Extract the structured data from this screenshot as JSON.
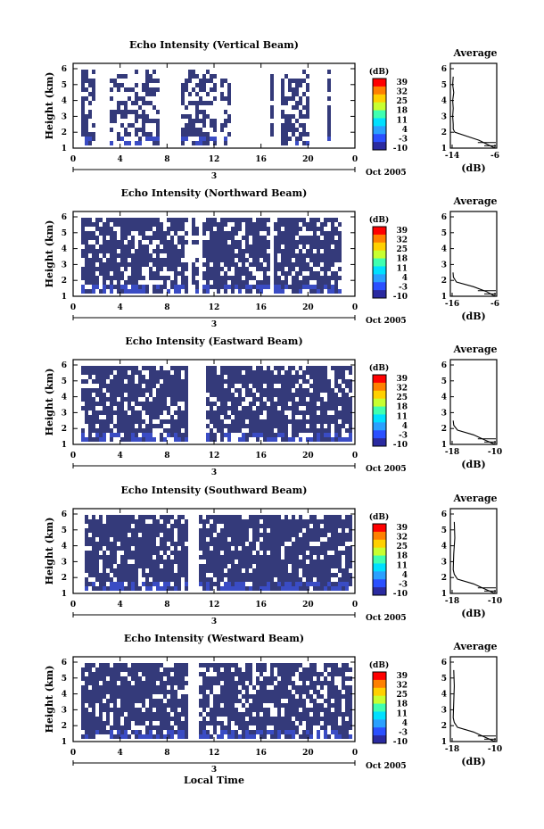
{
  "figure": {
    "x_axis_title": "Local Time",
    "date_label": "Oct 2005",
    "day_label": "3"
  },
  "colorbar": {
    "unit": "(dB)",
    "ticks": [
      "39",
      "32",
      "25",
      "18",
      "11",
      "4",
      "-3",
      "-10"
    ],
    "colors": [
      "#ff0000",
      "#ff8000",
      "#ffd000",
      "#c8ff30",
      "#40ffb0",
      "#00e0ff",
      "#2aa0ff",
      "#2a50ff",
      "#2a2aa0"
    ]
  },
  "average_panel": {
    "title": "Average",
    "xlabel": "(dB)"
  },
  "chart_data": [
    {
      "type": "heatmap",
      "title": "Echo Intensity (Vertical Beam)",
      "ylabel": "Height (km)",
      "xlabel": "Local Time",
      "x_ticks": [
        "0",
        "4",
        "8",
        "12",
        "16",
        "20",
        "0"
      ],
      "y_ticks": [
        "1",
        "2",
        "3",
        "4",
        "5",
        "6"
      ],
      "ylim": [
        1,
        6
      ],
      "color_range_db": [
        -10,
        39
      ],
      "avg_xticks": [
        "-14",
        "-6"
      ],
      "avg_xlim": [
        -14,
        -6
      ],
      "avg_profile": {
        "height_km": [
          1.0,
          1.5,
          2.0,
          2.2,
          2.5,
          3.0,
          3.5,
          4.0,
          4.5,
          5.0,
          5.5
        ],
        "db": [
          -6,
          -9,
          -13.5,
          -13.8,
          -13.8,
          -13.9,
          -13.8,
          -13.9,
          -13.7,
          -13.9,
          -13.8
        ]
      }
    },
    {
      "type": "heatmap",
      "title": "Echo Intensity (Northward Beam)",
      "ylabel": "Height (km)",
      "xlabel": "Local Time",
      "x_ticks": [
        "0",
        "4",
        "8",
        "12",
        "16",
        "20",
        "0"
      ],
      "y_ticks": [
        "1",
        "2",
        "3",
        "4",
        "5",
        "6"
      ],
      "ylim": [
        1,
        6
      ],
      "color_range_db": [
        -10,
        39
      ],
      "avg_xticks": [
        "-16",
        "-6"
      ],
      "avg_xlim": [
        -16,
        -6
      ],
      "avg_profile": {
        "height_km": [
          1.0,
          1.3,
          1.6,
          1.9,
          2.2,
          2.5
        ],
        "db": [
          -6,
          -8,
          -11,
          -15,
          -15.7,
          -15.8
        ]
      }
    },
    {
      "type": "heatmap",
      "title": "Echo Intensity (Eastward Beam)",
      "ylabel": "Height (km)",
      "xlabel": "Local Time",
      "x_ticks": [
        "0",
        "4",
        "8",
        "12",
        "16",
        "20",
        "0"
      ],
      "y_ticks": [
        "1",
        "2",
        "3",
        "4",
        "5",
        "6"
      ],
      "ylim": [
        1,
        6
      ],
      "color_range_db": [
        -10,
        39
      ],
      "avg_xticks": [
        "-18",
        "-10"
      ],
      "avg_xlim": [
        -18,
        -10
      ],
      "avg_profile": {
        "height_km": [
          1.0,
          1.3,
          1.6,
          1.9,
          2.2,
          2.5
        ],
        "db": [
          -10,
          -12,
          -14,
          -17,
          -17.7,
          -17.8
        ]
      }
    },
    {
      "type": "heatmap",
      "title": "Echo Intensity (Southward Beam)",
      "ylabel": "Height (km)",
      "xlabel": "Local Time",
      "x_ticks": [
        "0",
        "4",
        "8",
        "12",
        "16",
        "20",
        "0"
      ],
      "y_ticks": [
        "1",
        "2",
        "3",
        "4",
        "5",
        "6"
      ],
      "ylim": [
        1,
        6
      ],
      "color_range_db": [
        -10,
        39
      ],
      "avg_xticks": [
        "-18",
        "-10"
      ],
      "avg_xlim": [
        -18,
        -10
      ],
      "avg_profile": {
        "height_km": [
          1.0,
          1.3,
          1.6,
          1.9,
          2.2,
          2.5,
          3.5,
          4.5,
          5.5
        ],
        "db": [
          -10,
          -12,
          -14,
          -17,
          -17.6,
          -17.8,
          -17.7,
          -17.5,
          -17.6
        ]
      }
    },
    {
      "type": "heatmap",
      "title": "Echo Intensity (Westward Beam)",
      "ylabel": "Height (km)",
      "xlabel": "Local Time",
      "x_ticks": [
        "0",
        "4",
        "8",
        "12",
        "16",
        "20",
        "0"
      ],
      "y_ticks": [
        "1",
        "2",
        "3",
        "4",
        "5",
        "6"
      ],
      "ylim": [
        1,
        6
      ],
      "color_range_db": [
        -10,
        39
      ],
      "avg_xticks": [
        "-18",
        "-10"
      ],
      "avg_xlim": [
        -18,
        -10
      ],
      "avg_profile": {
        "height_km": [
          1.0,
          1.3,
          1.6,
          1.9,
          2.2,
          2.5,
          3.5,
          4.5,
          5.5
        ],
        "db": [
          -10,
          -12,
          -14,
          -17,
          -17.6,
          -17.8,
          -17.7,
          -17.6,
          -17.7
        ]
      }
    }
  ]
}
